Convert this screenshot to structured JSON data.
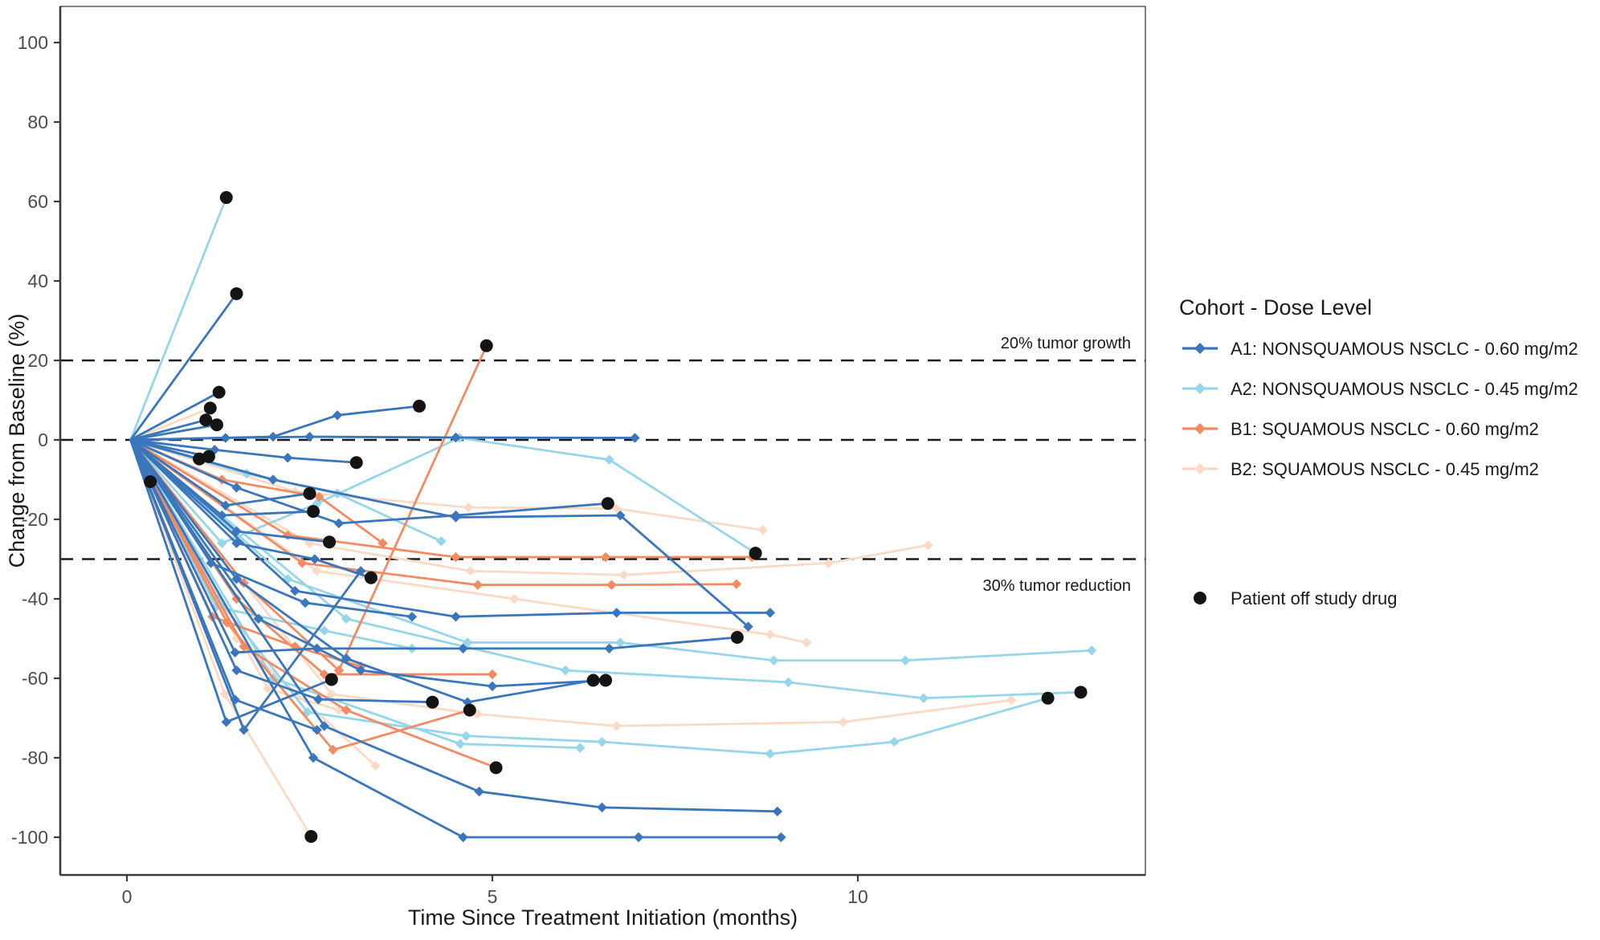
{
  "chart_data": {
    "type": "line",
    "title": "",
    "xlabel": "Time Since Treatment Initiation (months)",
    "ylabel": "Change from Baseline (%)",
    "xlim": [
      -0.91,
      13.93
    ],
    "ylim": [
      -109,
      109
    ],
    "x_ticks": [
      0,
      5,
      10
    ],
    "y_ticks": [
      100,
      80,
      60,
      40,
      20,
      0,
      -20,
      -40,
      -60,
      -80,
      -100
    ],
    "grid": "off",
    "reference_lines": [
      {
        "value": 20,
        "label": "20% tumor growth"
      },
      {
        "value": 0,
        "label": ""
      },
      {
        "value": -30,
        "label": "30% tumor reduction"
      }
    ],
    "legend": {
      "title": "Cohort - Dose Level",
      "position": "right",
      "items": [
        {
          "id": "A1",
          "label": "A1: NONSQUAMOUS NSCLC - 0.60 mg/m2",
          "color": "#3a76bc"
        },
        {
          "id": "A2",
          "label": "A2: NONSQUAMOUS NSCLC - 0.45 mg/m2",
          "color": "#96d5ea"
        },
        {
          "id": "B1",
          "label": "B1: SQUAMOUS NSCLC - 0.60 mg/m2",
          "color": "#f28b62"
        },
        {
          "id": "B2",
          "label": "B2: SQUAMOUS NSCLC - 0.45 mg/m2",
          "color": "#fbdac5"
        }
      ],
      "off_study_marker": {
        "label": "Patient off study drug",
        "color": "#141414"
      }
    },
    "series": [
      {
        "cohort": "A2",
        "off_study_end": true,
        "points": [
          [
            0.05,
            0
          ],
          [
            1.36,
            61
          ]
        ]
      },
      {
        "cohort": "A2",
        "off_study_end": true,
        "points": [
          [
            0.05,
            0
          ],
          [
            1.3,
            -26
          ],
          [
            2.6,
            -16
          ],
          [
            4.55,
            0.5
          ],
          [
            6.6,
            -5
          ],
          [
            8.6,
            -28.5
          ]
        ]
      },
      {
        "cohort": "A2",
        "off_study_end": false,
        "points": [
          [
            0.05,
            0
          ],
          [
            2.2,
            -35
          ],
          [
            4.66,
            -51
          ],
          [
            6.75,
            -51
          ],
          [
            8.85,
            -55.5
          ],
          [
            10.65,
            -55.5
          ],
          [
            13.2,
            -53
          ]
        ]
      },
      {
        "cohort": "A2",
        "off_study_end": true,
        "points": [
          [
            0.05,
            0
          ],
          [
            1.25,
            -40
          ],
          [
            2.47,
            -68.5
          ],
          [
            4.64,
            -74.5
          ],
          [
            6.5,
            -76
          ],
          [
            8.8,
            -79
          ],
          [
            10.5,
            -76
          ],
          [
            12.6,
            -65
          ]
        ]
      },
      {
        "cohort": "A2",
        "off_study_end": true,
        "points": [
          [
            0.05,
            0
          ],
          [
            3.0,
            -45
          ],
          [
            6.0,
            -58
          ],
          [
            9.05,
            -61
          ],
          [
            10.9,
            -65
          ],
          [
            13.05,
            -63.5
          ]
        ]
      },
      {
        "cohort": "A2",
        "off_study_end": false,
        "points": [
          [
            0.05,
            0
          ],
          [
            1.64,
            -8.5
          ],
          [
            2.88,
            -13.5
          ],
          [
            4.3,
            -25.5
          ]
        ]
      },
      {
        "cohort": "A2",
        "off_study_end": false,
        "points": [
          [
            0.05,
            0
          ],
          [
            1.22,
            -42
          ],
          [
            2.7,
            -48
          ],
          [
            3.9,
            -52.5
          ]
        ]
      },
      {
        "cohort": "A2",
        "off_study_end": false,
        "points": [
          [
            0.05,
            0
          ],
          [
            2.0,
            -60
          ],
          [
            4.56,
            -76.5
          ],
          [
            6.2,
            -77.5
          ]
        ]
      },
      {
        "cohort": "B2",
        "off_study_end": true,
        "points": [
          [
            0.05,
            0
          ],
          [
            1.14,
            8
          ]
        ]
      },
      {
        "cohort": "B2",
        "off_study_end": false,
        "points": [
          [
            0.05,
            0
          ],
          [
            2.3,
            -13
          ],
          [
            4.67,
            -17
          ],
          [
            6.7,
            -17.3
          ],
          [
            8.7,
            -22.7
          ]
        ]
      },
      {
        "cohort": "B2",
        "off_study_end": false,
        "points": [
          [
            0.05,
            0
          ],
          [
            2.5,
            -26
          ],
          [
            4.7,
            -33
          ],
          [
            6.8,
            -34
          ],
          [
            9.6,
            -31
          ],
          [
            10.96,
            -26.5
          ]
        ]
      },
      {
        "cohort": "B2",
        "off_study_end": false,
        "points": [
          [
            0.05,
            0
          ],
          [
            2.8,
            -64
          ],
          [
            4.8,
            -69
          ],
          [
            6.7,
            -72
          ],
          [
            9.8,
            -71
          ],
          [
            12.1,
            -65.5
          ]
        ]
      },
      {
        "cohort": "B2",
        "off_study_end": true,
        "points": [
          [
            0.05,
            0
          ],
          [
            1.34,
            -64
          ],
          [
            2.52,
            -99.8
          ]
        ]
      },
      {
        "cohort": "B2",
        "off_study_end": false,
        "points": [
          [
            0.05,
            0
          ],
          [
            1.5,
            -50
          ],
          [
            3.4,
            -82
          ]
        ]
      },
      {
        "cohort": "B2",
        "off_study_end": false,
        "points": [
          [
            0.05,
            0
          ],
          [
            1.93,
            -62.6
          ],
          [
            2.9,
            -68
          ]
        ]
      },
      {
        "cohort": "B2",
        "off_study_end": false,
        "points": [
          [
            0.05,
            0
          ],
          [
            2.6,
            -33
          ],
          [
            5.3,
            -40
          ],
          [
            8.8,
            -49
          ],
          [
            9.3,
            -51
          ]
        ]
      },
      {
        "cohort": "B1",
        "off_study_end": true,
        "points": [
          [
            0.05,
            0
          ],
          [
            1.6,
            -36
          ],
          [
            2.9,
            -58
          ],
          [
            4.92,
            23.7
          ]
        ]
      },
      {
        "cohort": "B1",
        "off_study_end": false,
        "points": [
          [
            0.05,
            0
          ],
          [
            2.2,
            -24
          ],
          [
            4.5,
            -29.5
          ],
          [
            6.55,
            -29.5
          ],
          [
            8.55,
            -29.5
          ]
        ]
      },
      {
        "cohort": "B1",
        "off_study_end": false,
        "points": [
          [
            0.05,
            0
          ],
          [
            2.4,
            -31
          ],
          [
            4.8,
            -36.5
          ],
          [
            6.63,
            -36.5
          ],
          [
            8.34,
            -36.3
          ]
        ]
      },
      {
        "cohort": "B1",
        "off_study_end": false,
        "points": [
          [
            0.05,
            0
          ],
          [
            1.5,
            -40
          ],
          [
            2.7,
            -59
          ],
          [
            5.0,
            -59
          ]
        ]
      },
      {
        "cohort": "B1",
        "off_study_end": true,
        "points": [
          [
            0.05,
            0
          ],
          [
            1.37,
            -46
          ],
          [
            2.82,
            -78
          ],
          [
            4.69,
            -68
          ]
        ]
      },
      {
        "cohort": "B1",
        "off_study_end": true,
        "points": [
          [
            0.05,
            0
          ],
          [
            1.6,
            -52
          ],
          [
            3.0,
            -68
          ],
          [
            5.05,
            -82.5
          ]
        ]
      },
      {
        "cohort": "B1",
        "off_study_end": false,
        "points": [
          [
            0.05,
            0
          ],
          [
            1.3,
            -10
          ],
          [
            2.63,
            -14.3
          ],
          [
            3.5,
            -26
          ]
        ]
      },
      {
        "cohort": "B1",
        "off_study_end": false,
        "points": [
          [
            0.05,
            0
          ],
          [
            1.17,
            -44.5
          ],
          [
            2.3,
            -52
          ],
          [
            3.2,
            -57
          ]
        ]
      },
      {
        "cohort": "A1",
        "off_study_end": true,
        "points": [
          [
            0.05,
            0
          ],
          [
            1.5,
            36.8
          ]
        ]
      },
      {
        "cohort": "A1",
        "off_study_end": true,
        "points": [
          [
            0.05,
            0
          ],
          [
            2.0,
            0.8
          ],
          [
            2.88,
            6.2
          ],
          [
            4.0,
            8.5
          ]
        ]
      },
      {
        "cohort": "A1",
        "off_study_end": true,
        "points": [
          [
            0.05,
            0
          ],
          [
            1.26,
            12
          ]
        ]
      },
      {
        "cohort": "A1",
        "off_study_end": true,
        "points": [
          [
            0.05,
            0
          ],
          [
            1.08,
            5
          ]
        ]
      },
      {
        "cohort": "A1",
        "off_study_end": true,
        "points": [
          [
            0.05,
            0
          ],
          [
            1.23,
            3.8
          ]
        ]
      },
      {
        "cohort": "A1",
        "off_study_end": true,
        "points": [
          [
            0.05,
            0
          ],
          [
            0.99,
            -4.8
          ]
        ]
      },
      {
        "cohort": "A1",
        "off_study_end": true,
        "points": [
          [
            0.05,
            0
          ],
          [
            1.12,
            -4.2
          ]
        ]
      },
      {
        "cohort": "A1",
        "off_study_end": true,
        "points": [
          [
            0.05,
            0
          ],
          [
            0.32,
            -10.5
          ]
        ]
      },
      {
        "cohort": "A1",
        "off_study_end": false,
        "points": [
          [
            0.05,
            0
          ],
          [
            1.35,
            0.5
          ],
          [
            2.5,
            0.8
          ],
          [
            4.5,
            0.6
          ],
          [
            6.95,
            0.5
          ]
        ]
      },
      {
        "cohort": "A1",
        "off_study_end": true,
        "points": [
          [
            0.05,
            0
          ],
          [
            1.2,
            -2.5
          ],
          [
            2.2,
            -4.5
          ],
          [
            3.14,
            -5.7
          ]
        ]
      },
      {
        "cohort": "A1",
        "off_study_end": true,
        "points": [
          [
            0.05,
            0
          ],
          [
            1.35,
            -16.5
          ],
          [
            2.5,
            -13.5
          ]
        ]
      },
      {
        "cohort": "A1",
        "off_study_end": true,
        "points": [
          [
            0.05,
            0
          ],
          [
            1.3,
            -19
          ],
          [
            2.55,
            -18
          ]
        ]
      },
      {
        "cohort": "A1",
        "off_study_end": true,
        "points": [
          [
            0.05,
            0
          ],
          [
            1.5,
            -23
          ],
          [
            2.77,
            -25.7
          ]
        ]
      },
      {
        "cohort": "A1",
        "off_study_end": true,
        "points": [
          [
            0.05,
            0
          ],
          [
            1.5,
            -12
          ],
          [
            2.9,
            -21
          ],
          [
            4.5,
            -19
          ],
          [
            6.58,
            -16
          ]
        ]
      },
      {
        "cohort": "A1",
        "off_study_end": false,
        "points": [
          [
            0.05,
            0
          ],
          [
            2.0,
            -10
          ],
          [
            4.5,
            -19.5
          ],
          [
            6.75,
            -19
          ],
          [
            8.5,
            -47
          ]
        ]
      },
      {
        "cohort": "A1",
        "off_study_end": true,
        "points": [
          [
            0.05,
            0
          ],
          [
            1.5,
            -26
          ],
          [
            2.57,
            -30
          ],
          [
            3.34,
            -34.7
          ]
        ]
      },
      {
        "cohort": "A1",
        "off_study_end": false,
        "points": [
          [
            0.05,
            0
          ],
          [
            2.3,
            -38
          ],
          [
            4.5,
            -44.5
          ],
          [
            6.7,
            -43.5
          ],
          [
            8.8,
            -43.5
          ]
        ]
      },
      {
        "cohort": "A1",
        "off_study_end": false,
        "points": [
          [
            0.05,
            0
          ],
          [
            1.15,
            -31
          ],
          [
            2.44,
            -41
          ],
          [
            3.9,
            -44.5
          ]
        ]
      },
      {
        "cohort": "A1",
        "off_study_end": true,
        "points": [
          [
            0.05,
            0
          ],
          [
            1.48,
            -53.5
          ],
          [
            2.6,
            -52.5
          ],
          [
            4.6,
            -52.5
          ],
          [
            6.6,
            -52.5
          ],
          [
            8.35,
            -49.7
          ]
        ]
      },
      {
        "cohort": "A1",
        "off_study_end": true,
        "points": [
          [
            0.05,
            0
          ],
          [
            1.5,
            -58
          ],
          [
            2.62,
            -65.3
          ],
          [
            4.18,
            -66
          ]
        ]
      },
      {
        "cohort": "A1",
        "off_study_end": true,
        "points": [
          [
            0.05,
            0
          ],
          [
            1.5,
            -35
          ],
          [
            3.0,
            -55
          ],
          [
            4.66,
            -66
          ],
          [
            6.38,
            -60.5
          ]
        ]
      },
      {
        "cohort": "A1",
        "off_study_end": true,
        "points": [
          [
            0.05,
            0
          ],
          [
            1.8,
            -45
          ],
          [
            3.2,
            -58
          ],
          [
            5.0,
            -62
          ],
          [
            6.55,
            -60.5
          ]
        ]
      },
      {
        "cohort": "A1",
        "off_study_end": true,
        "points": [
          [
            0.05,
            0
          ],
          [
            1.36,
            -71
          ],
          [
            2.8,
            -60.3
          ]
        ]
      },
      {
        "cohort": "A1",
        "off_study_end": false,
        "points": [
          [
            0.05,
            0
          ],
          [
            1.48,
            -65.4
          ],
          [
            2.6,
            -73
          ]
        ]
      },
      {
        "cohort": "A1",
        "off_study_end": false,
        "points": [
          [
            0.05,
            0
          ],
          [
            2.7,
            -72
          ],
          [
            4.82,
            -88.5
          ],
          [
            6.5,
            -92.5
          ],
          [
            8.9,
            -93.5
          ]
        ]
      },
      {
        "cohort": "A1",
        "off_study_end": false,
        "points": [
          [
            0.05,
            0
          ],
          [
            2.55,
            -80
          ],
          [
            4.6,
            -100
          ],
          [
            7.0,
            -100
          ],
          [
            8.95,
            -100
          ]
        ]
      },
      {
        "cohort": "A1",
        "off_study_end": false,
        "points": [
          [
            0.05,
            0
          ],
          [
            1.6,
            -73
          ],
          [
            3.2,
            -33
          ]
        ]
      }
    ]
  },
  "style": {
    "axis_color": "#3c3c3c",
    "tick_label_color": "#4d4d4d",
    "text_color": "#1a1a1a",
    "ref_line_color": "#1a1a1a",
    "background": "#ffffff"
  }
}
